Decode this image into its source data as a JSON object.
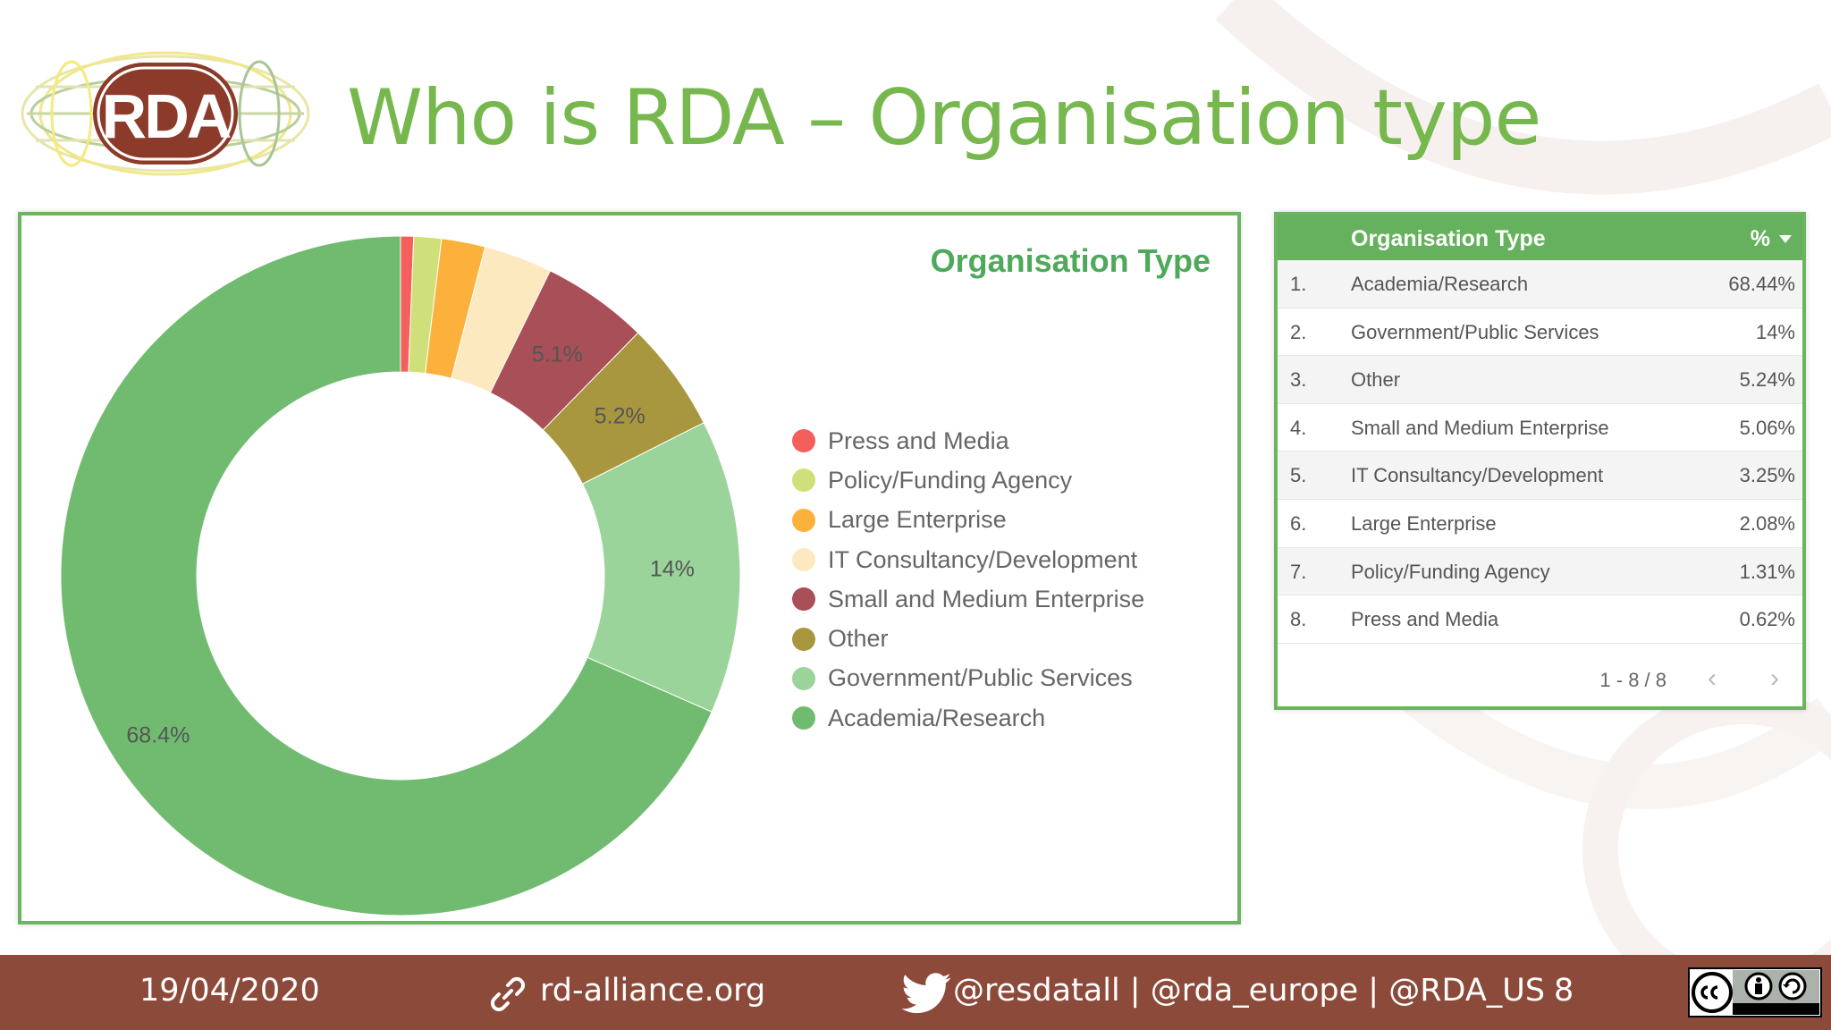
{
  "header": {
    "logo_text": "RDA",
    "title": "Who is RDA – Organisation type"
  },
  "chart_data": {
    "type": "pie",
    "title": "Organisation Type",
    "donut": true,
    "legend_position": "right",
    "slices": [
      {
        "label": "Press and Media",
        "value": 0.62,
        "color": "#f25f5c",
        "data_label": ""
      },
      {
        "label": "Policy/Funding Agency",
        "value": 1.31,
        "color": "#cfe07a",
        "data_label": ""
      },
      {
        "label": "Large Enterprise",
        "value": 2.08,
        "color": "#fbb13c",
        "data_label": ""
      },
      {
        "label": "IT Consultancy/Development",
        "value": 3.25,
        "color": "#fde9c0",
        "data_label": ""
      },
      {
        "label": "Small and Medium Enterprise",
        "value": 5.06,
        "color": "#a94f57",
        "data_label": "5.1%"
      },
      {
        "label": "Other",
        "value": 5.24,
        "color": "#a8973f",
        "data_label": "5.2%"
      },
      {
        "label": "Government/Public Services",
        "value": 14,
        "color": "#9bd49a",
        "data_label": "14%"
      },
      {
        "label": "Academia/Research",
        "value": 68.44,
        "color": "#71bb71",
        "data_label": "68.4%"
      }
    ]
  },
  "table": {
    "header_type": "Organisation Type",
    "header_pct": "%",
    "rows": [
      {
        "num": "1.",
        "type": "Academia/Research",
        "pct": "68.44%"
      },
      {
        "num": "2.",
        "type": "Government/Public Services",
        "pct": "14%"
      },
      {
        "num": "3.",
        "type": "Other",
        "pct": "5.24%"
      },
      {
        "num": "4.",
        "type": "Small and Medium Enterprise",
        "pct": "5.06%"
      },
      {
        "num": "5.",
        "type": "IT Consultancy/Development",
        "pct": "3.25%"
      },
      {
        "num": "6.",
        "type": "Large Enterprise",
        "pct": "2.08%"
      },
      {
        "num": "7.",
        "type": "Policy/Funding Agency",
        "pct": "1.31%"
      },
      {
        "num": "8.",
        "type": "Press and Media",
        "pct": "0.62%"
      }
    ],
    "pagination": "1 - 8 / 8"
  },
  "footer": {
    "date": "19/04/2020",
    "website": "rd-alliance.org",
    "social": "@resdatall | @rda_europe | @RDA_US",
    "page_number": "8",
    "colors": {
      "bar": "#8c4a3a"
    }
  }
}
